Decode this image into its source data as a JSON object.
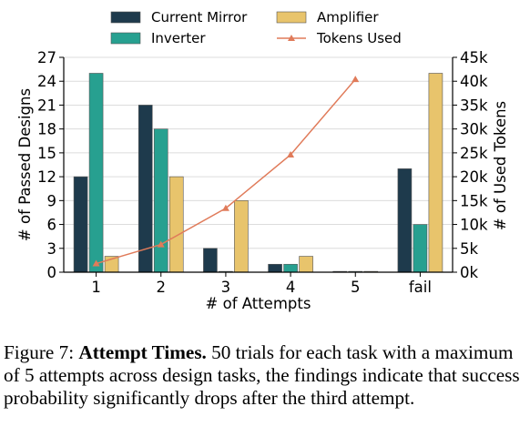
{
  "chart_data": {
    "type": "bar",
    "categories": [
      "1",
      "2",
      "3",
      "4",
      "5",
      "fail"
    ],
    "xlabel": "# of Attempts",
    "ylabel": "# of Passed Designs",
    "ylabel_right": "# of Used Tokens",
    "ylim": [
      0,
      27
    ],
    "yticks": [
      "0",
      "3",
      "6",
      "9",
      "12",
      "15",
      "18",
      "21",
      "24",
      "27"
    ],
    "ylim_right": [
      0,
      45000
    ],
    "yticks_right": [
      "0k",
      "5k",
      "10k",
      "15k",
      "20k",
      "25k",
      "30k",
      "35k",
      "40k",
      "45k"
    ],
    "grid": true,
    "legend_position": "top",
    "series": [
      {
        "name": "Current Mirror",
        "color": "#1e3a4c",
        "values": [
          12,
          21,
          3,
          1,
          0,
          13
        ]
      },
      {
        "name": "Inverter",
        "color": "#27a090",
        "values": [
          25,
          18,
          0,
          1,
          0,
          6
        ]
      },
      {
        "name": "Amplifier",
        "color": "#e8c46c",
        "values": [
          2,
          12,
          9,
          2,
          0,
          25
        ]
      }
    ],
    "line_series": {
      "name": "Tokens Used",
      "color": "#e07b5a",
      "axis": "right",
      "x": [
        "1",
        "2",
        "3",
        "4",
        "5"
      ],
      "values": [
        1800,
        5800,
        13400,
        24600,
        40400
      ]
    }
  },
  "caption": {
    "label": "Figure 7:",
    "title": "Attempt Times.",
    "text": "50 trials for each task with a maximum of 5 attempts across design tasks, the findings indicate that success probability significantly drops after the third attempt."
  }
}
